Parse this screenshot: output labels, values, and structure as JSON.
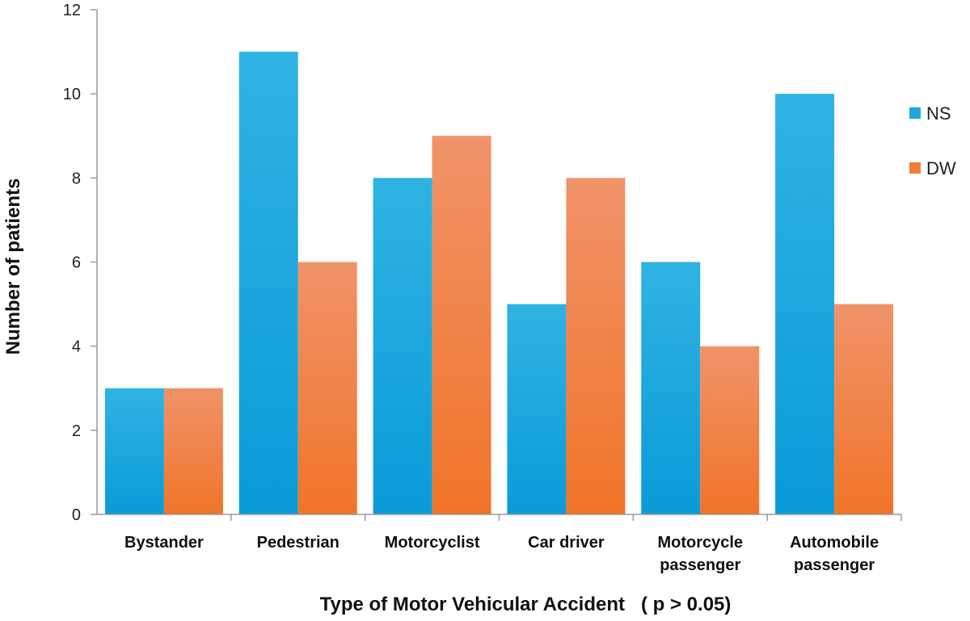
{
  "chart_data": {
    "type": "bar",
    "categories": [
      "Bystander",
      "Pedestrian",
      "Motorcyclist",
      "Car driver",
      "Motorcycle\npassenger",
      "Automobile\npassenger"
    ],
    "series": [
      {
        "name": "NS",
        "values": [
          3,
          11,
          8,
          5,
          6,
          10
        ],
        "color": "#1fa6de"
      },
      {
        "name": "DW",
        "values": [
          3,
          6,
          9,
          8,
          4,
          5
        ],
        "color": "#f07c3c"
      }
    ],
    "xlabel": "Type of Motor Vehicular Accident   ( p > 0.05)",
    "ylabel": "Number of patients",
    "ylim": [
      0,
      12
    ],
    "yticks": [
      0,
      2,
      4,
      6,
      8,
      10,
      12
    ],
    "legend_position": "right",
    "grid": false
  }
}
